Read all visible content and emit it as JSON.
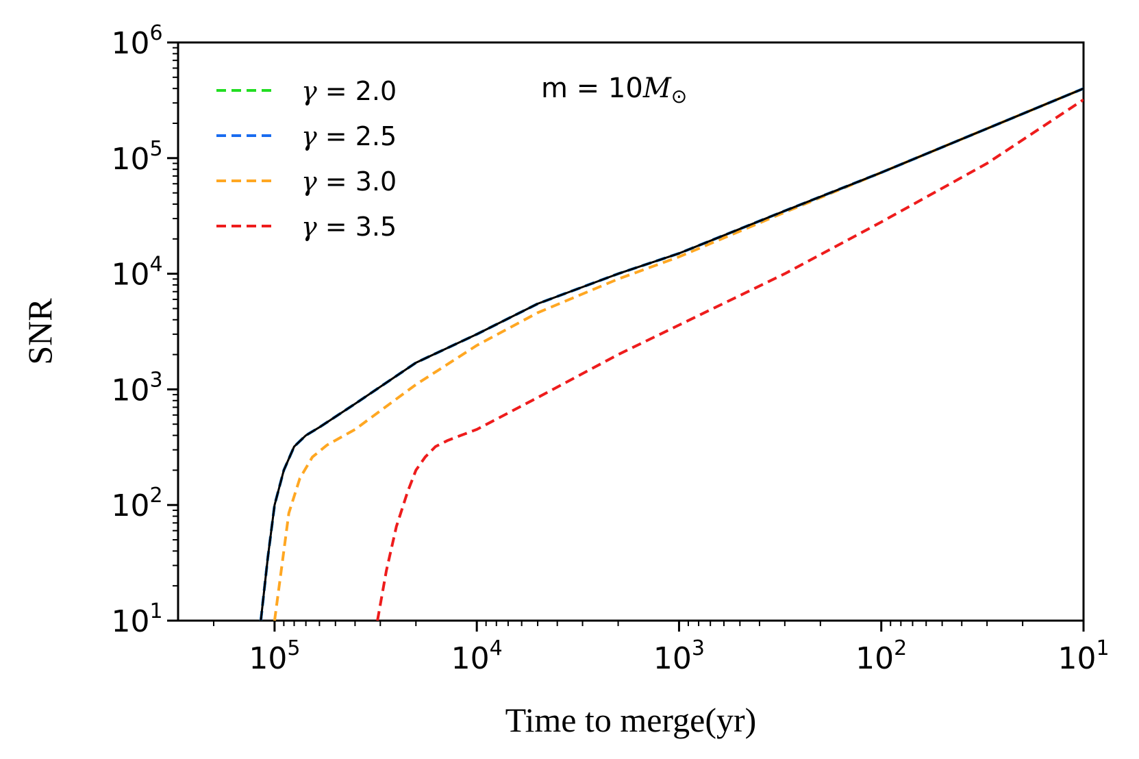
{
  "chart_data": {
    "type": "line",
    "xlabel": "Time to merge(yr)",
    "ylabel": "SNR",
    "xscale": "log",
    "yscale": "log",
    "x_reversed": true,
    "xlim": [
      300000,
      10
    ],
    "ylim": [
      10,
      1000000
    ],
    "grid": false,
    "legend_position": "top-left",
    "x_ticks": [
      {
        "base": "10",
        "exp": "5"
      },
      {
        "base": "10",
        "exp": "4"
      },
      {
        "base": "10",
        "exp": "3"
      },
      {
        "base": "10",
        "exp": "2"
      },
      {
        "base": "10",
        "exp": "1"
      }
    ],
    "y_ticks": [
      {
        "base": "10",
        "exp": "1"
      },
      {
        "base": "10",
        "exp": "2"
      },
      {
        "base": "10",
        "exp": "3"
      },
      {
        "base": "10",
        "exp": "4"
      },
      {
        "base": "10",
        "exp": "5"
      },
      {
        "base": "10",
        "exp": "6"
      }
    ],
    "x_tick_values": [
      100000,
      10000,
      1000,
      100,
      10
    ],
    "y_tick_values": [
      10,
      100,
      1000,
      10000,
      100000,
      1000000
    ],
    "annotation": {
      "prefix": "m = 10",
      "symbol": "M",
      "sub": "⊙"
    },
    "series": [
      {
        "label_prefix": "γ",
        "label_value": " = 2.0",
        "color": "#22dd22",
        "style": "dashed",
        "x": [
          117000,
          108000,
          100000,
          90000,
          80000,
          70000,
          60000,
          40000,
          20000,
          10000,
          5000,
          2000,
          1000,
          300,
          100,
          30,
          10
        ],
        "y": [
          10,
          35,
          100,
          200,
          320,
          400,
          470,
          750,
          1700,
          3000,
          5500,
          10000,
          15000,
          35000,
          75000,
          180000,
          400000
        ]
      },
      {
        "label_prefix": "γ",
        "label_value": " = 2.5",
        "color": "#1a6cf0",
        "style": "dashed",
        "x": [
          117000,
          108000,
          100000,
          90000,
          80000,
          70000,
          60000,
          40000,
          20000,
          10000,
          5000,
          2000,
          1000,
          300,
          100,
          30,
          10
        ],
        "y": [
          10,
          35,
          100,
          200,
          320,
          400,
          470,
          750,
          1700,
          3000,
          5500,
          10000,
          15000,
          35000,
          75000,
          180000,
          400000
        ]
      },
      {
        "label_prefix": "γ",
        "label_value": " = 3.0",
        "color": "#ffa722",
        "style": "dashed",
        "x": [
          100000,
          92000,
          85000,
          75000,
          65000,
          55000,
          40000,
          20000,
          10000,
          5000,
          2000,
          1000,
          300,
          100,
          30,
          10
        ],
        "y": [
          10,
          30,
          85,
          170,
          260,
          330,
          450,
          1100,
          2400,
          4600,
          9000,
          14000,
          34000,
          75000,
          180000,
          400000
        ]
      },
      {
        "label_prefix": "γ",
        "label_value": " = 3.5",
        "color": "#ee1c1c",
        "style": "dashed",
        "x": [
          31000,
          28000,
          25000,
          22000,
          20000,
          18000,
          16000,
          14000,
          12000,
          10000,
          5000,
          2000,
          1000,
          300,
          100,
          30,
          10
        ],
        "y": [
          10,
          27,
          65,
          130,
          200,
          260,
          320,
          360,
          400,
          450,
          850,
          2000,
          3600,
          10000,
          28000,
          90000,
          320000
        ]
      },
      {
        "label_prefix": "",
        "label_value": "",
        "color": "#000000",
        "style": "solid",
        "x": [
          117000,
          108000,
          100000,
          90000,
          80000,
          70000,
          60000,
          40000,
          20000,
          10000,
          5000,
          2000,
          1000,
          300,
          100,
          30,
          10
        ],
        "y": [
          10,
          35,
          100,
          200,
          320,
          400,
          470,
          750,
          1700,
          3000,
          5500,
          10000,
          15000,
          35000,
          75000,
          180000,
          400000
        ]
      }
    ]
  }
}
